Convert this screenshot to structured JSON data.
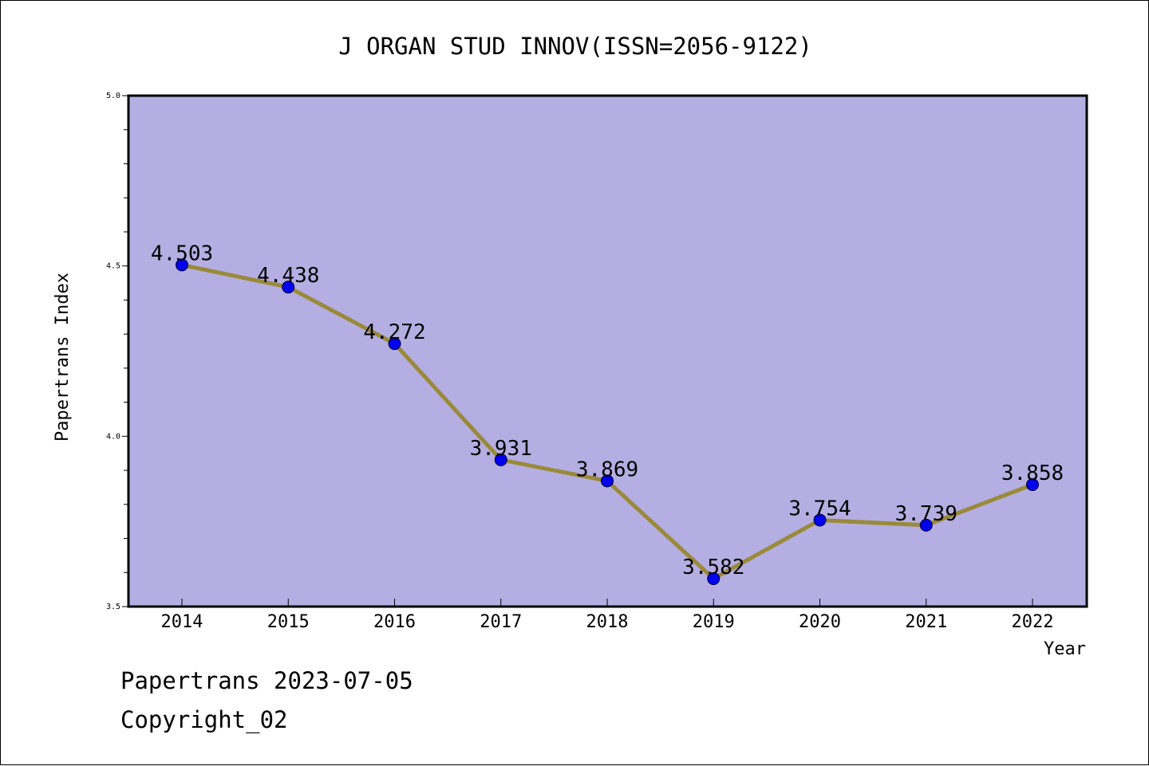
{
  "chart_data": {
    "type": "line",
    "title": "J ORGAN STUD INNOV(ISSN=2056-9122)",
    "xlabel": "Year",
    "ylabel": "Papertrans Index",
    "x": [
      "2014",
      "2015",
      "2016",
      "2017",
      "2018",
      "2019",
      "2020",
      "2021",
      "2022"
    ],
    "series": [
      {
        "values": [
          4.503,
          4.438,
          4.272,
          3.931,
          3.869,
          3.582,
          3.754,
          3.739,
          3.858
        ],
        "labels": [
          "4.503",
          "4.438",
          "4.272",
          "3.931",
          "3.869",
          "3.582",
          "3.754",
          "3.739",
          "3.858"
        ]
      }
    ],
    "ylim": [
      3.5,
      5.0
    ],
    "yticks": [
      "3.5",
      "4.0",
      "4.5",
      "5.0"
    ],
    "grid": false,
    "colors": {
      "plot_background": "#b5aee2",
      "line": "#998a3a",
      "marker": "#0000ee"
    }
  },
  "footer": {
    "line1": "Papertrans 2023-07-05",
    "line2": "Copyright_02"
  }
}
